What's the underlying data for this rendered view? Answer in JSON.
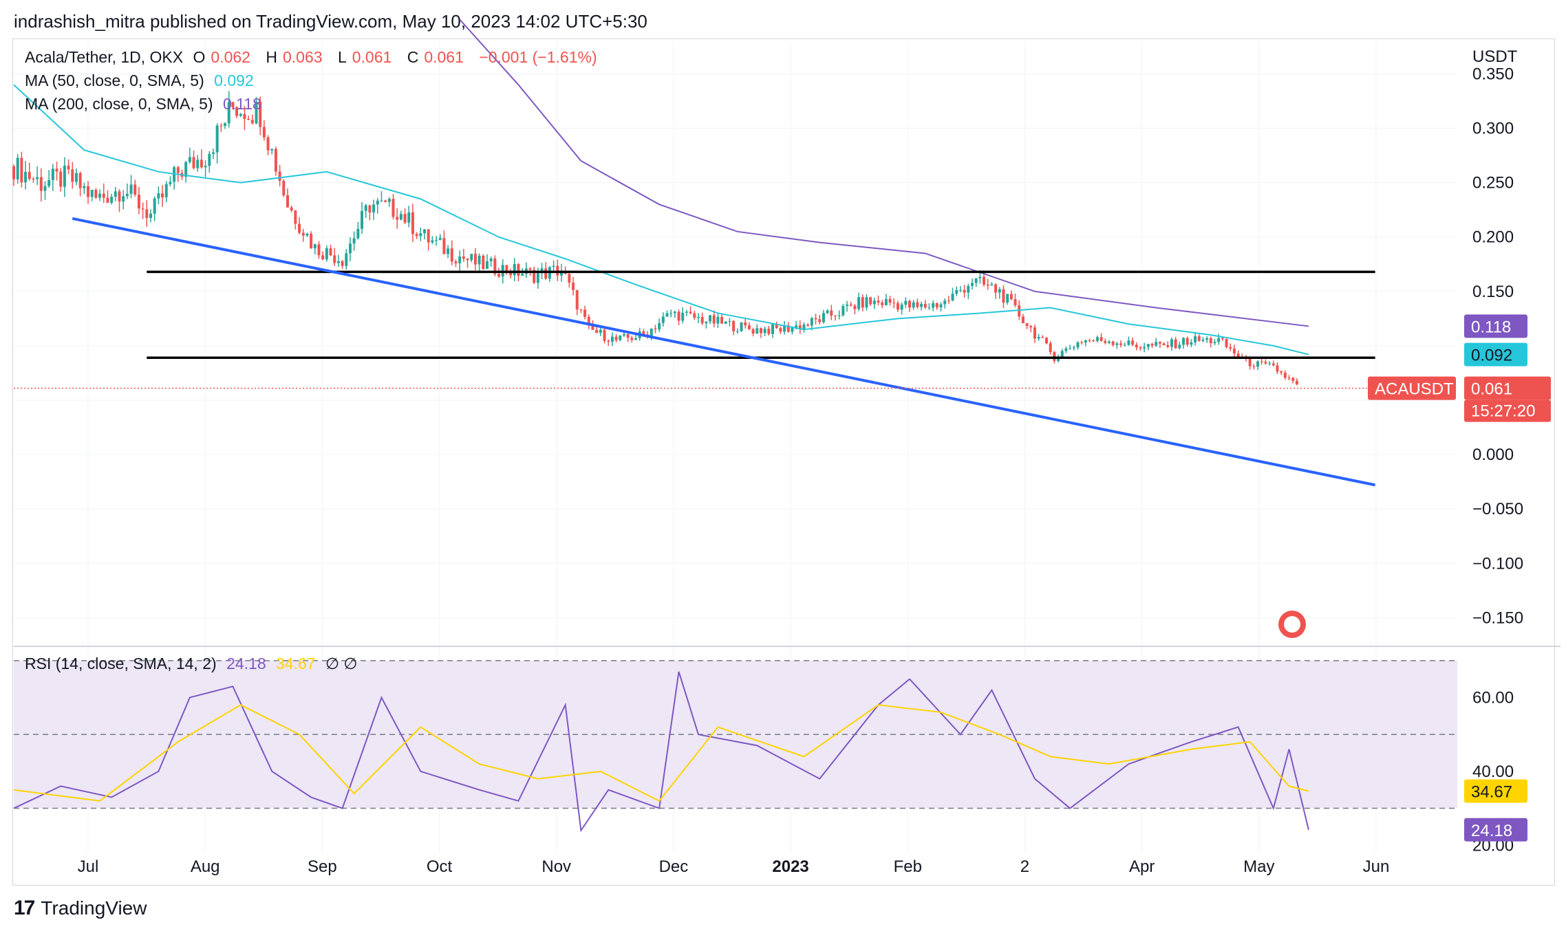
{
  "header": {
    "publisher": "indrashish_mitra published on TradingView.com, May 10, 2023 14:02 UTC+5:30"
  },
  "legend": {
    "symbol": "Acala/Tether, 1D, OKX",
    "o_label": "O",
    "o": "0.062",
    "h_label": "H",
    "h": "0.063",
    "l_label": "L",
    "l": "0.061",
    "c_label": "C",
    "c": "0.061",
    "change": "−0.001 (−1.61%)",
    "ma50_label": "MA (50, close, 0, SMA, 5)",
    "ma50_value": "0.092",
    "ma200_label": "MA (200, close, 0, SMA, 5)",
    "ma200_value": "0.118",
    "rsi_label": "RSI (14, close, SMA, 14, 2)",
    "rsi_value": "24.18",
    "rsi_ma_value": "34.67",
    "rsi_extra": "∅ ∅"
  },
  "price_axis": {
    "currency": "USDT",
    "ticks": [
      "0.350",
      "0.300",
      "0.250",
      "0.200",
      "0.150",
      "0.000",
      "−0.050",
      "−0.100",
      "−0.150"
    ],
    "ma200_tag": "0.118",
    "ma50_tag": "0.092",
    "price_tag": "0.061",
    "countdown": "15:27:20",
    "symbol_tag": "ACAUSDT"
  },
  "rsi_axis": {
    "ticks": [
      "60.00",
      "40.00",
      "20.00"
    ],
    "rsi_ma_tag": "34.67",
    "rsi_tag": "24.18"
  },
  "time_axis": [
    "Jul",
    "Aug",
    "Sep",
    "Oct",
    "Nov",
    "Dec",
    "2023",
    "Feb",
    "2",
    "Apr",
    "May",
    "Jun"
  ],
  "footer": {
    "brand": "TradingView"
  },
  "colors": {
    "up": "#26a69a",
    "down": "#ef5350",
    "ma50": "#26c6da",
    "ma200": "#7e57c2",
    "trendline": "#2962ff",
    "level": "#000000",
    "rsi": "#7e57c2",
    "rsi_ma": "#ffd400",
    "rsi_band": "#ede7f6"
  },
  "chart_data": [
    {
      "type": "candlestick",
      "title": "Acala/Tether, 1D, OKX",
      "ylim": [
        -0.17,
        0.38
      ],
      "x_range": [
        "2022-06-13",
        "2023-06-17"
      ],
      "last": {
        "o": 0.062,
        "h": 0.063,
        "l": 0.061,
        "c": 0.061
      },
      "close_series": {
        "x": [
          "2022-06-13",
          "2022-06-20",
          "2022-06-27",
          "2022-07-04",
          "2022-07-11",
          "2022-07-18",
          "2022-07-25",
          "2022-08-01",
          "2022-08-08",
          "2022-08-15",
          "2022-08-22",
          "2022-08-29",
          "2022-09-05",
          "2022-09-12",
          "2022-09-19",
          "2022-09-26",
          "2022-10-03",
          "2022-10-10",
          "2022-10-17",
          "2022-10-24",
          "2022-10-31",
          "2022-11-07",
          "2022-11-14",
          "2022-11-21",
          "2022-11-28",
          "2022-12-05",
          "2022-12-12",
          "2022-12-19",
          "2022-12-26",
          "2023-01-02",
          "2023-01-09",
          "2023-01-16",
          "2023-01-23",
          "2023-01-30",
          "2023-02-06",
          "2023-02-13",
          "2023-02-20",
          "2023-02-27",
          "2023-03-06",
          "2023-03-13",
          "2023-03-20",
          "2023-03-27",
          "2023-04-03",
          "2023-04-10",
          "2023-04-17",
          "2023-04-24",
          "2023-05-01",
          "2023-05-08"
        ],
        "values": [
          0.265,
          0.25,
          0.255,
          0.235,
          0.245,
          0.22,
          0.26,
          0.275,
          0.32,
          0.315,
          0.23,
          0.19,
          0.18,
          0.23,
          0.225,
          0.2,
          0.185,
          0.175,
          0.17,
          0.165,
          0.17,
          0.115,
          0.105,
          0.11,
          0.13,
          0.125,
          0.12,
          0.115,
          0.115,
          0.12,
          0.13,
          0.14,
          0.14,
          0.135,
          0.14,
          0.16,
          0.15,
          0.12,
          0.09,
          0.105,
          0.105,
          0.1,
          0.1,
          0.105,
          0.105,
          0.085,
          0.08,
          0.061
        ]
      },
      "series": [
        {
          "name": "MA (50, close, 0, SMA, 5)",
          "last": 0.092,
          "x": [
            "2022-06-13",
            "2022-07-01",
            "2022-07-20",
            "2022-08-10",
            "2022-09-01",
            "2022-09-25",
            "2022-10-15",
            "2022-11-01",
            "2022-11-20",
            "2022-12-10",
            "2023-01-01",
            "2023-01-25",
            "2023-02-15",
            "2023-03-05",
            "2023-03-25",
            "2023-04-15",
            "2023-05-01",
            "2023-05-10"
          ],
          "values": [
            0.34,
            0.28,
            0.26,
            0.25,
            0.26,
            0.235,
            0.2,
            0.18,
            0.155,
            0.13,
            0.115,
            0.125,
            0.13,
            0.135,
            0.12,
            0.11,
            0.1,
            0.092
          ]
        },
        {
          "name": "MA (200, close, 0, SMA, 5)",
          "last": 0.118,
          "x": [
            "2022-10-05",
            "2022-10-20",
            "2022-11-05",
            "2022-11-25",
            "2022-12-15",
            "2023-01-05",
            "2023-02-01",
            "2023-03-01",
            "2023-04-01",
            "2023-05-10"
          ],
          "values": [
            0.4,
            0.34,
            0.27,
            0.23,
            0.205,
            0.195,
            0.185,
            0.15,
            0.135,
            0.118
          ]
        }
      ],
      "drawings": [
        {
          "kind": "horizontal",
          "y": 0.168,
          "x": [
            "2022-07-17",
            "2023-05-27"
          ]
        },
        {
          "kind": "horizontal",
          "y": 0.089,
          "x": [
            "2022-07-17",
            "2023-05-27"
          ]
        },
        {
          "kind": "trendline",
          "x": [
            "2022-06-28",
            "2023-05-27"
          ],
          "y": [
            0.217,
            -0.028
          ]
        }
      ]
    },
    {
      "type": "line",
      "title": "RSI (14, close, SMA, 14, 2)",
      "ylim": [
        18,
        72
      ],
      "bands": [
        30,
        50,
        70
      ],
      "series": [
        {
          "name": "RSI",
          "last": 24.18,
          "x": [
            "2022-06-13",
            "2022-06-25",
            "2022-07-08",
            "2022-07-20",
            "2022-07-28",
            "2022-08-08",
            "2022-08-18",
            "2022-08-28",
            "2022-09-05",
            "2022-09-15",
            "2022-09-25",
            "2022-10-10",
            "2022-10-20",
            "2022-11-01",
            "2022-11-05",
            "2022-11-12",
            "2022-11-25",
            "2022-11-30",
            "2022-12-05",
            "2022-12-20",
            "2023-01-05",
            "2023-01-20",
            "2023-01-28",
            "2023-02-10",
            "2023-02-18",
            "2023-03-01",
            "2023-03-10",
            "2023-03-25",
            "2023-04-10",
            "2023-04-22",
            "2023-05-01",
            "2023-05-05",
            "2023-05-10"
          ],
          "values": [
            30,
            36,
            33,
            40,
            60,
            63,
            40,
            33,
            30,
            60,
            40,
            35,
            32,
            58,
            24,
            35,
            30,
            67,
            50,
            47,
            38,
            58,
            65,
            50,
            62,
            38,
            30,
            42,
            48,
            52,
            30,
            46,
            24.18
          ]
        },
        {
          "name": "RSI-based MA",
          "last": 34.67,
          "x": [
            "2022-06-13",
            "2022-07-05",
            "2022-07-25",
            "2022-08-10",
            "2022-08-25",
            "2022-09-08",
            "2022-09-25",
            "2022-10-10",
            "2022-10-25",
            "2022-11-10",
            "2022-11-25",
            "2022-12-10",
            "2023-01-01",
            "2023-01-20",
            "2023-02-05",
            "2023-02-20",
            "2023-03-05",
            "2023-03-20",
            "2023-04-10",
            "2023-04-25",
            "2023-05-05",
            "2023-05-10"
          ],
          "values": [
            35,
            32,
            48,
            58,
            50,
            34,
            52,
            42,
            38,
            40,
            32,
            52,
            44,
            58,
            56,
            50,
            44,
            42,
            46,
            48,
            36,
            34.67
          ]
        }
      ]
    }
  ]
}
